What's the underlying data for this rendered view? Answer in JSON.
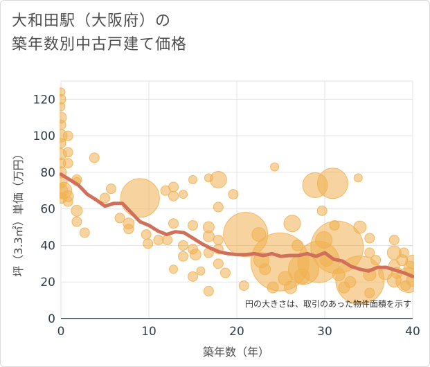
{
  "title_lines": [
    "大和田駅（大阪府）の",
    "築年数別中古戸建て価格"
  ],
  "chart_data": {
    "type": "scatter",
    "title": "大和田駅（大阪府）の築年数別中古戸建て価格",
    "xlabel": "築年数（年）",
    "ylabel": "坪（3.3㎡）単価（万円）",
    "xlim": [
      0,
      40
    ],
    "ylim": [
      0,
      130
    ],
    "x_ticks": [
      0,
      10,
      20,
      30,
      40
    ],
    "y_ticks": [
      0,
      20,
      40,
      60,
      80,
      100,
      120
    ],
    "grid": true,
    "annotation": "円の大きさは、取引のあった物件面積を示す",
    "bubble_color": "#f0b050",
    "line_color": "#d0705a",
    "trend_line": {
      "x": [
        0,
        1,
        2,
        3,
        4,
        5,
        6,
        7,
        8,
        9,
        10,
        11,
        12,
        13,
        14,
        15,
        16,
        17,
        18,
        19,
        20,
        21,
        22,
        23,
        24,
        25,
        26,
        27,
        28,
        29,
        30,
        31,
        32,
        33,
        34,
        35,
        36,
        37,
        38,
        39,
        40
      ],
      "y": [
        79,
        76,
        73,
        68,
        65,
        61.5,
        63,
        63,
        58,
        53,
        51,
        48,
        46,
        47.5,
        47,
        44,
        41,
        38.5,
        36.5,
        35.5,
        35,
        35,
        35.5,
        34.5,
        35.5,
        34,
        34.5,
        34.5,
        35.5,
        34,
        36,
        32.5,
        31.5,
        28.5,
        27,
        26,
        28,
        28,
        26.5,
        25,
        23
      ]
    },
    "points": [
      {
        "x": 0,
        "y": 124,
        "s": 6
      },
      {
        "x": 0,
        "y": 120,
        "s": 7
      },
      {
        "x": 0,
        "y": 116,
        "s": 6
      },
      {
        "x": 0,
        "y": 110,
        "s": 8
      },
      {
        "x": 0,
        "y": 106,
        "s": 7
      },
      {
        "x": 0,
        "y": 100,
        "s": 9
      },
      {
        "x": 0,
        "y": 96,
        "s": 7
      },
      {
        "x": 0,
        "y": 90,
        "s": 8
      },
      {
        "x": 0,
        "y": 85,
        "s": 7
      },
      {
        "x": 0,
        "y": 80,
        "s": 8
      },
      {
        "x": 0,
        "y": 75,
        "s": 9
      },
      {
        "x": 0,
        "y": 70,
        "s": 10
      },
      {
        "x": 0,
        "y": 66,
        "s": 8
      },
      {
        "x": 0.3,
        "y": 70,
        "s": 12
      },
      {
        "x": 0.8,
        "y": 100,
        "s": 7
      },
      {
        "x": 0.8,
        "y": 91,
        "s": 7
      },
      {
        "x": 0.8,
        "y": 85,
        "s": 7
      },
      {
        "x": 0.8,
        "y": 67,
        "s": 8
      },
      {
        "x": 0.8,
        "y": 64,
        "s": 7
      },
      {
        "x": 1.8,
        "y": 76,
        "s": 7
      },
      {
        "x": 1.8,
        "y": 75,
        "s": 6
      },
      {
        "x": 1.8,
        "y": 59,
        "s": 8
      },
      {
        "x": 1.8,
        "y": 53,
        "s": 7
      },
      {
        "x": 2.7,
        "y": 47,
        "s": 7
      },
      {
        "x": 3.8,
        "y": 88,
        "s": 7
      },
      {
        "x": 5,
        "y": 66,
        "s": 7
      },
      {
        "x": 5.7,
        "y": 71,
        "s": 7
      },
      {
        "x": 6.7,
        "y": 55,
        "s": 7
      },
      {
        "x": 7.7,
        "y": 52,
        "s": 8
      },
      {
        "x": 7.7,
        "y": 49,
        "s": 7
      },
      {
        "x": 9,
        "y": 66,
        "s": 28
      },
      {
        "x": 9.7,
        "y": 46,
        "s": 7
      },
      {
        "x": 9.9,
        "y": 41,
        "s": 7
      },
      {
        "x": 11.1,
        "y": 43,
        "s": 7
      },
      {
        "x": 11.9,
        "y": 70,
        "s": 7
      },
      {
        "x": 12.1,
        "y": 43,
        "s": 7
      },
      {
        "x": 12.8,
        "y": 72,
        "s": 7
      },
      {
        "x": 12.8,
        "y": 67,
        "s": 7
      },
      {
        "x": 12.8,
        "y": 52,
        "s": 7
      },
      {
        "x": 12.8,
        "y": 27,
        "s": 6
      },
      {
        "x": 13.9,
        "y": 40,
        "s": 7
      },
      {
        "x": 13.9,
        "y": 34,
        "s": 7
      },
      {
        "x": 13.9,
        "y": 68,
        "s": 6
      },
      {
        "x": 15,
        "y": 76,
        "s": 6
      },
      {
        "x": 15,
        "y": 51,
        "s": 7
      },
      {
        "x": 15,
        "y": 38,
        "s": 7
      },
      {
        "x": 15,
        "y": 23,
        "s": 7
      },
      {
        "x": 15.3,
        "y": 35,
        "s": 8
      },
      {
        "x": 15.9,
        "y": 26,
        "s": 6
      },
      {
        "x": 16.8,
        "y": 77,
        "s": 6
      },
      {
        "x": 16.8,
        "y": 50,
        "s": 8
      },
      {
        "x": 16.8,
        "y": 45,
        "s": 8
      },
      {
        "x": 16.8,
        "y": 36,
        "s": 7
      },
      {
        "x": 16.8,
        "y": 15,
        "s": 7
      },
      {
        "x": 17.9,
        "y": 76,
        "s": 12
      },
      {
        "x": 17.9,
        "y": 61,
        "s": 7
      },
      {
        "x": 17.9,
        "y": 43,
        "s": 7
      },
      {
        "x": 17.9,
        "y": 38,
        "s": 7
      },
      {
        "x": 17.9,
        "y": 30,
        "s": 7
      },
      {
        "x": 18.7,
        "y": 25,
        "s": 7
      },
      {
        "x": 19.6,
        "y": 68,
        "s": 7
      },
      {
        "x": 20.8,
        "y": 18,
        "s": 7
      },
      {
        "x": 21,
        "y": 46,
        "s": 32
      },
      {
        "x": 22.5,
        "y": 46,
        "s": 10
      },
      {
        "x": 22.8,
        "y": 32,
        "s": 11
      },
      {
        "x": 23.2,
        "y": 27,
        "s": 8
      },
      {
        "x": 24.1,
        "y": 17,
        "s": 8
      },
      {
        "x": 24.3,
        "y": 83,
        "s": 6
      },
      {
        "x": 24.9,
        "y": 31,
        "s": 42
      },
      {
        "x": 25.5,
        "y": 22,
        "s": 10
      },
      {
        "x": 26.1,
        "y": 17,
        "s": 9
      },
      {
        "x": 26.3,
        "y": 52,
        "s": 12
      },
      {
        "x": 26.9,
        "y": 40,
        "s": 8
      },
      {
        "x": 27.4,
        "y": 23,
        "s": 11
      },
      {
        "x": 27.6,
        "y": 27,
        "s": 22
      },
      {
        "x": 28.9,
        "y": 73,
        "s": 18
      },
      {
        "x": 29.3,
        "y": 31,
        "s": 30
      },
      {
        "x": 29.7,
        "y": 59,
        "s": 7
      },
      {
        "x": 29.9,
        "y": 43,
        "s": 12
      },
      {
        "x": 30.2,
        "y": 32,
        "s": 9
      },
      {
        "x": 30.9,
        "y": 74,
        "s": 22
      },
      {
        "x": 31.1,
        "y": 51,
        "s": 7
      },
      {
        "x": 31.4,
        "y": 39,
        "s": 38
      },
      {
        "x": 31.6,
        "y": 24,
        "s": 9
      },
      {
        "x": 32.2,
        "y": 17,
        "s": 8
      },
      {
        "x": 32.9,
        "y": 20,
        "s": 8
      },
      {
        "x": 33.8,
        "y": 77,
        "s": 6
      },
      {
        "x": 34,
        "y": 50,
        "s": 9
      },
      {
        "x": 34,
        "y": 21,
        "s": 35
      },
      {
        "x": 35.1,
        "y": 44,
        "s": 7
      },
      {
        "x": 35.1,
        "y": 36,
        "s": 7
      },
      {
        "x": 35.1,
        "y": 24,
        "s": 9
      },
      {
        "x": 35.1,
        "y": 14,
        "s": 7
      },
      {
        "x": 35.8,
        "y": 32,
        "s": 7
      },
      {
        "x": 36.9,
        "y": 25,
        "s": 10
      },
      {
        "x": 37.9,
        "y": 43,
        "s": 7
      },
      {
        "x": 37.9,
        "y": 36,
        "s": 10
      },
      {
        "x": 37.9,
        "y": 29,
        "s": 8
      },
      {
        "x": 37.9,
        "y": 21,
        "s": 10
      },
      {
        "x": 38.2,
        "y": 25,
        "s": 8
      },
      {
        "x": 38.8,
        "y": 32,
        "s": 8
      },
      {
        "x": 39,
        "y": 36,
        "s": 7
      },
      {
        "x": 39.2,
        "y": 18,
        "s": 7
      },
      {
        "x": 39.5,
        "y": 21,
        "s": 18
      },
      {
        "x": 39.7,
        "y": 28,
        "s": 9
      },
      {
        "x": 40,
        "y": 31,
        "s": 10
      },
      {
        "x": 40,
        "y": 21,
        "s": 9
      }
    ]
  }
}
